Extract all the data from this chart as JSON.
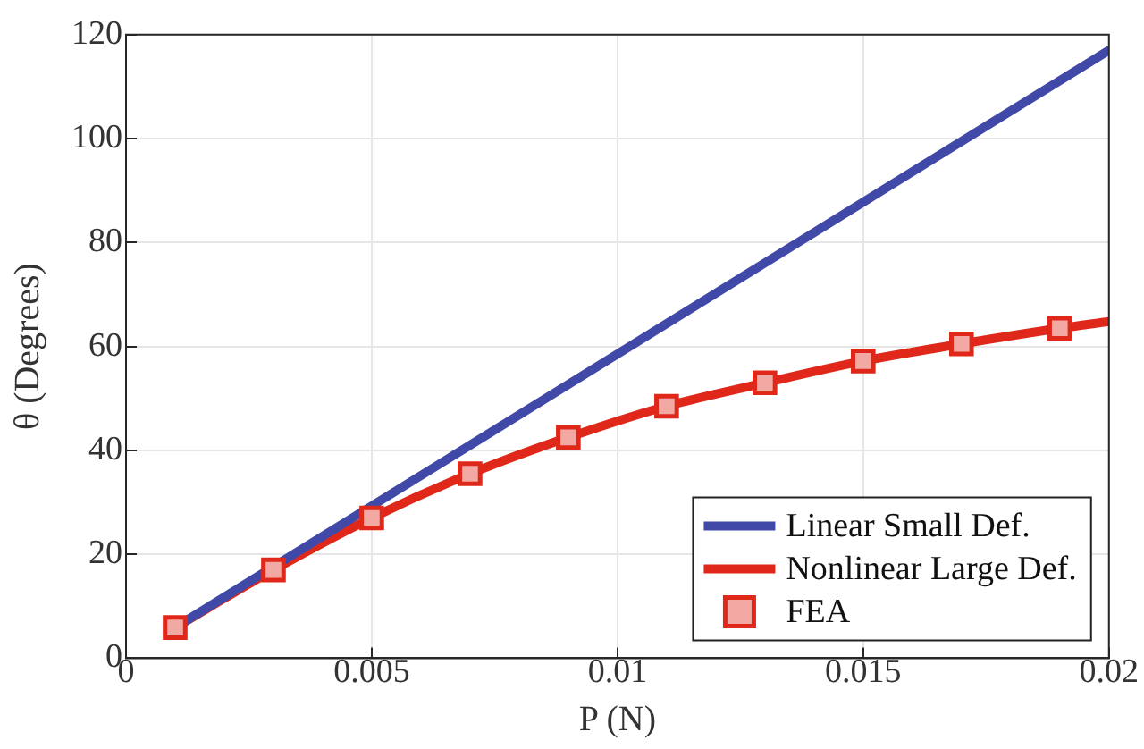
{
  "chart_data": {
    "type": "line",
    "xlabel": "P (N)",
    "ylabel": "θ (Degrees)",
    "xlim": [
      0,
      0.02
    ],
    "xticks": [
      0,
      0.005,
      0.01,
      0.015,
      0.02
    ],
    "ylim": [
      0,
      120
    ],
    "yticks": [
      0,
      20,
      40,
      60,
      80,
      100,
      120
    ],
    "grid": true,
    "legend": "bottom right",
    "series": [
      {
        "name": "Linear Small Def.",
        "color": "#4049a8",
        "marker": "none",
        "x": [
          0.001,
          0.02
        ],
        "values": [
          5.9,
          117
        ]
      },
      {
        "name": "Nonlinear Large Def.",
        "color": "#e0281a",
        "marker": "none",
        "x": [
          0.001,
          0.003,
          0.005,
          0.007,
          0.009,
          0.011,
          0.013,
          0.015,
          0.017,
          0.019,
          0.02
        ],
        "values": [
          5.9,
          17,
          27,
          35.5,
          42.5,
          48.5,
          53,
          57.2,
          60.5,
          63.5,
          64.8
        ]
      },
      {
        "name": "FEA",
        "type": "scatter",
        "color": "#e0281a",
        "marker": "square",
        "x": [
          0.001,
          0.003,
          0.005,
          0.007,
          0.009,
          0.011,
          0.013,
          0.015,
          0.017,
          0.019
        ],
        "values": [
          5.9,
          17,
          27,
          35.5,
          42.5,
          48.5,
          53,
          57.2,
          60.5,
          63.5
        ]
      }
    ]
  }
}
